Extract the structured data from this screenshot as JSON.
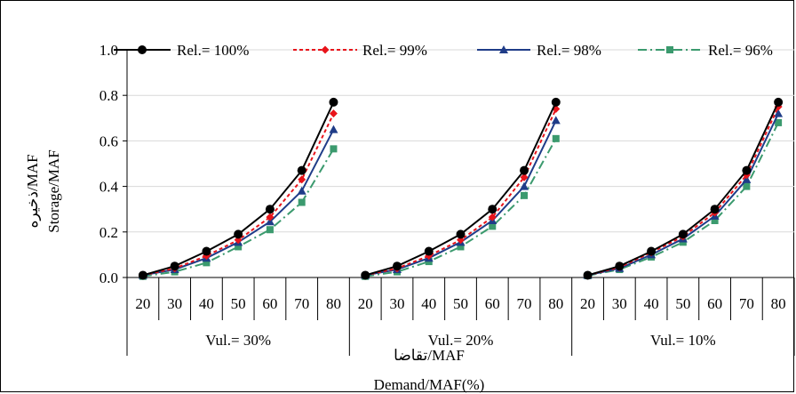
{
  "chart_data": {
    "type": "line",
    "xlabel_fa": "تقاضا/MAF",
    "xlabel": "Demand/MAF(%)",
    "ylabel_fa": "ذخیره/MAF",
    "ylabel": "Storage/MAF",
    "ylim": [
      0,
      1.0
    ],
    "y_ticks": [
      "0.0",
      "0.2",
      "0.4",
      "0.6",
      "0.8",
      "1.0"
    ],
    "groups": [
      {
        "label": "Vul.= 30%",
        "categories": [
          "20",
          "30",
          "40",
          "50",
          "60",
          "70",
          "80"
        ]
      },
      {
        "label": "Vul.= 20%",
        "categories": [
          "20",
          "30",
          "40",
          "50",
          "60",
          "70",
          "80"
        ]
      },
      {
        "label": "Vul.= 10%",
        "categories": [
          "20",
          "30",
          "40",
          "50",
          "60",
          "70",
          "80"
        ]
      }
    ],
    "series": [
      {
        "name": "Rel.= 100%",
        "color": "#000000",
        "marker": "circle",
        "dash": "solid",
        "values": [
          [
            0.01,
            0.05,
            0.115,
            0.19,
            0.3,
            0.47,
            0.77
          ],
          [
            0.01,
            0.05,
            0.115,
            0.19,
            0.3,
            0.47,
            0.77
          ],
          [
            0.01,
            0.05,
            0.115,
            0.19,
            0.3,
            0.47,
            0.77
          ]
        ]
      },
      {
        "name": "Rel.= 99%",
        "color": "#e8141b",
        "marker": "diamond",
        "dash": "dotted",
        "values": [
          [
            0.01,
            0.04,
            0.095,
            0.165,
            0.265,
            0.43,
            0.72
          ],
          [
            0.01,
            0.04,
            0.095,
            0.165,
            0.265,
            0.44,
            0.74
          ],
          [
            0.01,
            0.045,
            0.11,
            0.18,
            0.285,
            0.45,
            0.75
          ]
        ]
      },
      {
        "name": "Rel.= 98%",
        "color": "#1f3c88",
        "marker": "triangle",
        "dash": "solid",
        "values": [
          [
            0.01,
            0.035,
            0.085,
            0.155,
            0.245,
            0.38,
            0.65
          ],
          [
            0.01,
            0.035,
            0.085,
            0.155,
            0.25,
            0.4,
            0.69
          ],
          [
            0.01,
            0.04,
            0.1,
            0.17,
            0.27,
            0.43,
            0.72
          ]
        ]
      },
      {
        "name": "Rel.= 96%",
        "color": "#3b9a6e",
        "marker": "square",
        "dash": "dashed",
        "values": [
          [
            0.005,
            0.025,
            0.065,
            0.135,
            0.21,
            0.33,
            0.565
          ],
          [
            0.005,
            0.025,
            0.07,
            0.135,
            0.225,
            0.36,
            0.61
          ],
          [
            0.008,
            0.035,
            0.09,
            0.155,
            0.25,
            0.4,
            0.68
          ]
        ]
      }
    ],
    "legend_position": "top"
  }
}
